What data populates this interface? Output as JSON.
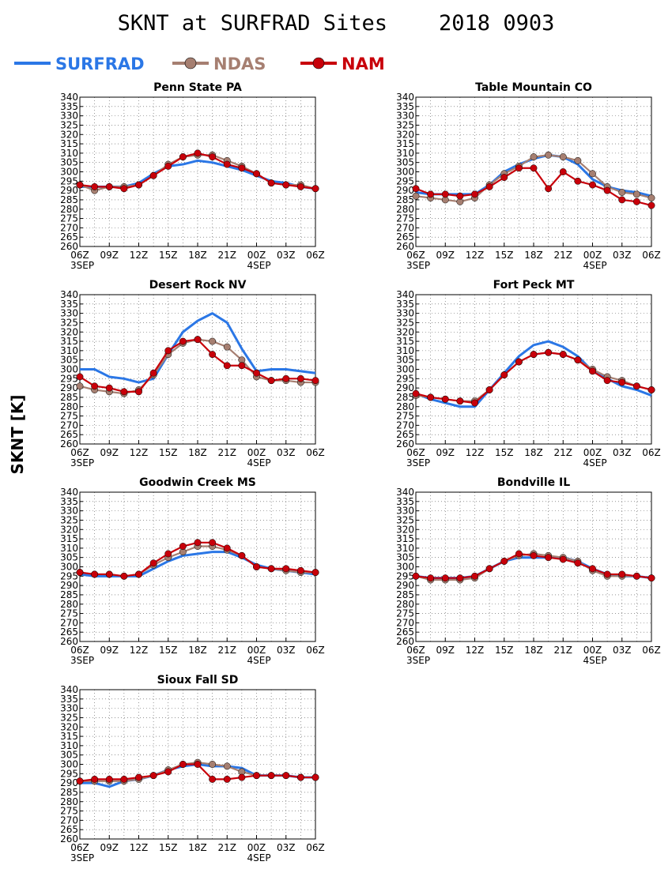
{
  "figure": {
    "title": "SKNT at SURFRAD Sites    2018 0903",
    "ylabel": "SKNT [K]"
  },
  "legend": [
    {
      "name": "SURFRAD",
      "color": "#2b77e6",
      "marker": "none"
    },
    {
      "name": "NDAS",
      "color": "#a67f71",
      "marker": "circle"
    },
    {
      "name": "NAM",
      "color": "#c8000a",
      "marker": "circle"
    }
  ],
  "axis": {
    "y_ticks": [
      260,
      265,
      270,
      275,
      280,
      285,
      290,
      295,
      300,
      305,
      310,
      315,
      320,
      325,
      330,
      335,
      340
    ],
    "ylim": [
      260,
      340
    ],
    "x_ticks": [
      "06Z",
      "09Z",
      "12Z",
      "15Z",
      "18Z",
      "21Z",
      "00Z",
      "03Z",
      "06Z"
    ],
    "x_date_labels": [
      {
        "hour": 0,
        "label": "3SEP"
      },
      {
        "hour": 18,
        "label": "4SEP"
      }
    ],
    "xlim_hours": [
      0,
      24
    ],
    "grid": true
  },
  "chart_data": [
    {
      "type": "line",
      "title": "Penn State PA",
      "x_hours": [
        0,
        1.5,
        3,
        4.5,
        6,
        7.5,
        9,
        10.5,
        12,
        13.5,
        15,
        16.5,
        18,
        19.5,
        21,
        22.5,
        24
      ],
      "series": [
        {
          "name": "SURFRAD",
          "values": [
            292,
            292,
            292,
            292,
            294,
            299,
            303,
            304,
            306,
            305,
            303,
            301,
            298,
            295,
            294,
            292,
            291
          ]
        },
        {
          "name": "NDAS",
          "values": [
            293,
            290,
            292,
            292,
            293,
            298,
            304,
            308,
            309,
            309,
            306,
            303,
            299,
            294,
            293,
            293,
            291
          ]
        },
        {
          "name": "NAM",
          "values": [
            293,
            292,
            292,
            291,
            293,
            298,
            303,
            308,
            310,
            308,
            304,
            302,
            299,
            294,
            293,
            292,
            291
          ]
        }
      ]
    },
    {
      "type": "line",
      "title": "Table Mountain CO",
      "x_hours": [
        0,
        1.5,
        3,
        4.5,
        6,
        7.5,
        9,
        10.5,
        12,
        13.5,
        15,
        16.5,
        18,
        19.5,
        21,
        22.5,
        24
      ],
      "series": [
        {
          "name": "SURFRAD",
          "values": [
            289,
            288,
            288,
            288,
            288,
            293,
            300,
            304,
            307,
            309,
            308,
            304,
            296,
            292,
            290,
            289,
            287
          ]
        },
        {
          "name": "NDAS",
          "values": [
            287,
            286,
            285,
            284,
            286,
            293,
            299,
            303,
            308,
            309,
            308,
            306,
            299,
            292,
            289,
            288,
            286
          ]
        },
        {
          "name": "NAM",
          "values": [
            291,
            288,
            288,
            287,
            288,
            292,
            297,
            302,
            302,
            291,
            300,
            295,
            293,
            290,
            285,
            284,
            282
          ]
        }
      ]
    },
    {
      "type": "line",
      "title": "Desert Rock NV",
      "x_hours": [
        0,
        1.5,
        3,
        4.5,
        6,
        7.5,
        9,
        10.5,
        12,
        13.5,
        15,
        16.5,
        18,
        19.5,
        21,
        22.5,
        24
      ],
      "series": [
        {
          "name": "SURFRAD",
          "values": [
            300,
            300,
            296,
            295,
            293,
            295,
            308,
            320,
            326,
            330,
            325,
            311,
            299,
            300,
            300,
            299,
            298
          ]
        },
        {
          "name": "NDAS",
          "values": [
            291,
            289,
            288,
            287,
            289,
            297,
            308,
            314,
            316,
            315,
            312,
            305,
            296,
            294,
            294,
            293,
            293
          ]
        },
        {
          "name": "NAM",
          "values": [
            296,
            291,
            290,
            288,
            288,
            298,
            310,
            315,
            316,
            308,
            302,
            302,
            298,
            294,
            295,
            295,
            294
          ]
        }
      ]
    },
    {
      "type": "line",
      "title": "Fort Peck MT",
      "x_hours": [
        0,
        1.5,
        3,
        4.5,
        6,
        7.5,
        9,
        10.5,
        12,
        13.5,
        15,
        16.5,
        18,
        19.5,
        21,
        22.5,
        24
      ],
      "series": [
        {
          "name": "SURFRAD",
          "values": [
            287,
            284,
            282,
            280,
            280,
            289,
            298,
            307,
            313,
            315,
            312,
            307,
            299,
            295,
            291,
            289,
            286
          ]
        },
        {
          "name": "NDAS",
          "values": [
            286,
            285,
            284,
            283,
            283,
            289,
            297,
            304,
            308,
            309,
            308,
            305,
            300,
            296,
            294,
            291,
            289
          ]
        },
        {
          "name": "NAM",
          "values": [
            287,
            285,
            284,
            283,
            282,
            289,
            297,
            304,
            308,
            309,
            308,
            305,
            299,
            294,
            293,
            291,
            289
          ]
        }
      ]
    },
    {
      "type": "line",
      "title": "Goodwin Creek MS",
      "x_hours": [
        0,
        1.5,
        3,
        4.5,
        6,
        7.5,
        9,
        10.5,
        12,
        13.5,
        15,
        16.5,
        18,
        19.5,
        21,
        22.5,
        24
      ],
      "series": [
        {
          "name": "SURFRAD",
          "values": [
            296,
            295,
            295,
            295,
            295,
            299,
            303,
            306,
            307,
            308,
            308,
            305,
            301,
            299,
            298,
            297,
            296
          ]
        },
        {
          "name": "NDAS",
          "values": [
            297,
            296,
            296,
            295,
            296,
            301,
            305,
            308,
            311,
            311,
            309,
            306,
            300,
            299,
            298,
            297,
            297
          ]
        },
        {
          "name": "NAM",
          "values": [
            297,
            296,
            296,
            295,
            296,
            302,
            307,
            311,
            313,
            313,
            310,
            306,
            300,
            299,
            299,
            298,
            297
          ]
        }
      ]
    },
    {
      "type": "line",
      "title": "Bondville IL",
      "x_hours": [
        0,
        1.5,
        3,
        4.5,
        6,
        7.5,
        9,
        10.5,
        12,
        13.5,
        15,
        16.5,
        18,
        19.5,
        21,
        22.5,
        24
      ],
      "series": [
        {
          "name": "SURFRAD",
          "values": [
            295,
            294,
            294,
            294,
            295,
            299,
            303,
            305,
            305,
            305,
            305,
            303,
            299,
            296,
            295,
            295,
            294
          ]
        },
        {
          "name": "NDAS",
          "values": [
            295,
            293,
            293,
            293,
            294,
            299,
            303,
            306,
            307,
            306,
            305,
            303,
            298,
            295,
            295,
            295,
            294
          ]
        },
        {
          "name": "NAM",
          "values": [
            295,
            294,
            294,
            294,
            295,
            299,
            303,
            307,
            306,
            305,
            304,
            302,
            299,
            296,
            296,
            295,
            294
          ]
        }
      ]
    },
    {
      "type": "line",
      "title": "Sioux Fall SD",
      "x_hours": [
        0,
        1.5,
        3,
        4.5,
        6,
        7.5,
        9,
        10.5,
        12,
        13.5,
        15,
        16.5,
        18,
        19.5,
        21,
        22.5,
        24
      ],
      "series": [
        {
          "name": "SURFRAD",
          "values": [
            290,
            290,
            288,
            291,
            292,
            294,
            297,
            299,
            300,
            299,
            299,
            298,
            294,
            294,
            294,
            293,
            293
          ]
        },
        {
          "name": "NDAS",
          "values": [
            291,
            291,
            291,
            291,
            292,
            294,
            297,
            300,
            301,
            300,
            299,
            296,
            294,
            294,
            294,
            293,
            293
          ]
        },
        {
          "name": "NAM",
          "values": [
            291,
            292,
            292,
            292,
            293,
            294,
            296,
            300,
            300,
            292,
            292,
            293,
            294,
            294,
            294,
            293,
            293
          ]
        }
      ]
    }
  ]
}
